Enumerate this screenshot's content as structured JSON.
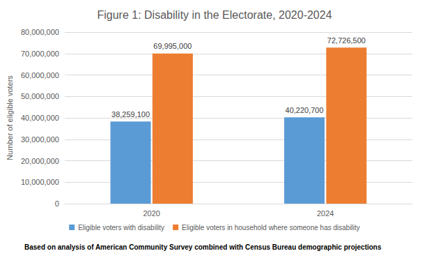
{
  "chart_data": {
    "type": "bar",
    "title": "Figure 1: Disability in the Electorate, 2020-2024",
    "y_label": "Number of eligible voters",
    "annotations": [
      "Based on analysis of American Community Survey combined with Census Bureau demographic projections"
    ],
    "categories": [
      "2020",
      "2024"
    ],
    "series": [
      {
        "name": "Eligible voters with disability",
        "color": "#5b9bd5",
        "values": [
          38259100,
          40220700
        ],
        "value_labels": [
          "38,259,100",
          "40,220,700"
        ]
      },
      {
        "name": "Eligible voters in household where someone has disability",
        "color": "#ed7d31",
        "values": [
          69995000,
          72726500
        ],
        "value_labels": [
          "69,995,000",
          "72,726,500"
        ]
      }
    ],
    "ylim": [
      0,
      80000000
    ],
    "yticks": [
      0,
      {
        "value": 10000000,
        "label": "10,000,000"
      },
      {
        "value": 20000000,
        "label": "20,000,000"
      },
      {
        "value": 30000000,
        "label": "30,000,000"
      },
      {
        "value": 40000000,
        "label": "40,000,000"
      },
      {
        "value": 50000000,
        "label": "50,000,000"
      },
      {
        "value": 60000000,
        "label": "60,000,000"
      },
      {
        "value": 70000000,
        "label": "70,000,000"
      },
      {
        "value": 80000000,
        "label": "80,000,000"
      }
    ],
    "grid": true,
    "legend": "bottom",
    "data_labels": true
  }
}
